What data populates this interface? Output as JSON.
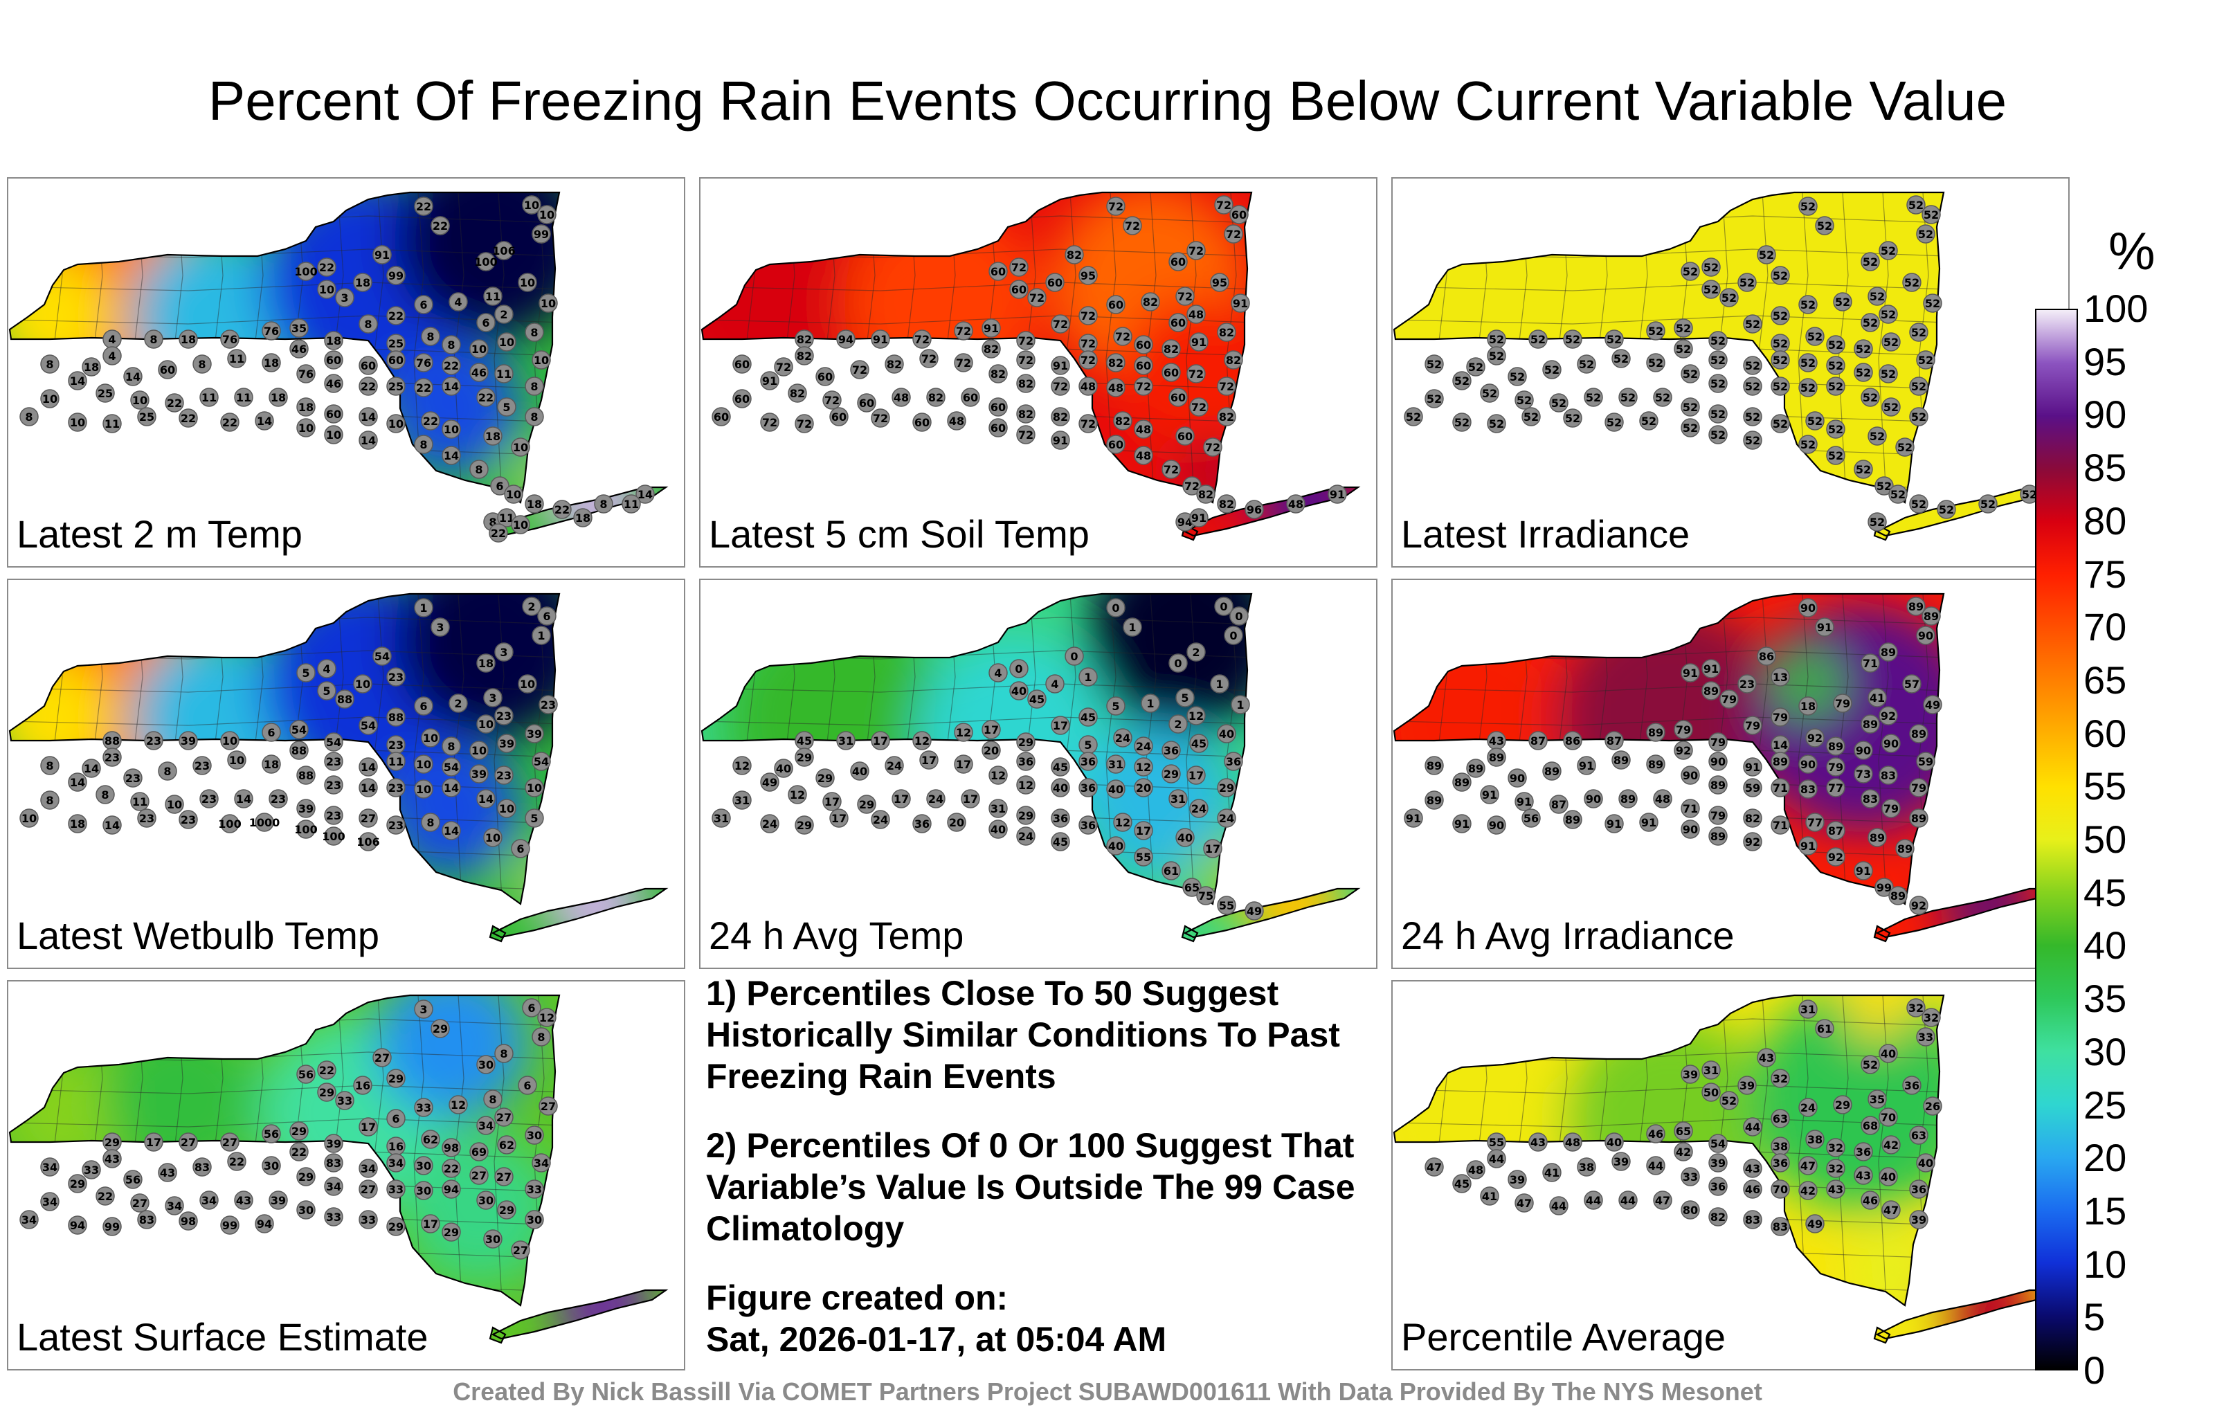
{
  "title": "Percent Of Freezing Rain Events Occurring Below Current Variable Value",
  "colorbar": {
    "unit": "%",
    "ticks": [
      "100",
      "95",
      "90",
      "85",
      "80",
      "75",
      "70",
      "65",
      "60",
      "55",
      "50",
      "45",
      "40",
      "35",
      "30",
      "25",
      "20",
      "15",
      "10",
      "5",
      "0"
    ]
  },
  "panels": [
    {
      "label": "Latest 2 m Temp",
      "field": "cold-east",
      "stations": [
        "1",
        "4",
        "2",
        "6",
        "1",
        "14",
        "18",
        "3",
        "2",
        "46",
        "22",
        "18",
        "6",
        "4",
        "11",
        "10",
        "10",
        "6",
        "2",
        "8",
        "10",
        "3",
        "22",
        "35",
        "18",
        "8",
        "25",
        "8",
        "8",
        "10",
        "10",
        "10",
        "4",
        "8",
        "18",
        "76",
        "76",
        "46",
        "60",
        "60",
        "60",
        "76",
        "22",
        "46",
        "11",
        "8",
        "4",
        "18",
        "14",
        "60",
        "8",
        "11",
        "18",
        "76",
        "46",
        "22",
        "25",
        "22",
        "14",
        "22",
        "5",
        "8",
        "8",
        "14",
        "25",
        "10",
        "22",
        "11",
        "11",
        "18",
        "18",
        "60",
        "14",
        "10",
        "22",
        "10",
        "18",
        "10",
        "10",
        "8",
        "10",
        "11",
        "25",
        "22",
        "22",
        "14",
        "10",
        "10",
        "14",
        "8",
        "14",
        "8",
        "6",
        "10",
        "18",
        "22",
        "8",
        "14",
        "8",
        "11",
        "10",
        "22",
        "18",
        "11",
        "22",
        "22",
        "10",
        "10",
        "99",
        "91",
        "99",
        "100",
        "106",
        "100"
      ]
    },
    {
      "label": "Latest 5 cm Soil Temp",
      "field": "soil",
      "stations": [
        "72",
        "72",
        "72",
        "60",
        "72",
        "82",
        "95",
        "60",
        "72",
        "60",
        "72",
        "60",
        "60",
        "82",
        "72",
        "95",
        "91",
        "60",
        "48",
        "82",
        "60",
        "72",
        "72",
        "91",
        "72",
        "72",
        "72",
        "72",
        "60",
        "82",
        "91",
        "82",
        "82",
        "94",
        "91",
        "72",
        "72",
        "82",
        "72",
        "91",
        "72",
        "82",
        "60",
        "60",
        "72",
        "72",
        "82",
        "72",
        "60",
        "72",
        "82",
        "72",
        "72",
        "82",
        "82",
        "72",
        "48",
        "48",
        "72",
        "60",
        "72",
        "82",
        "60",
        "91",
        "82",
        "72",
        "60",
        "48",
        "82",
        "60",
        "60",
        "82",
        "82",
        "72",
        "82",
        "48",
        "60",
        "72",
        "60",
        "60",
        "72",
        "72",
        "60",
        "72",
        "60",
        "48",
        "60",
        "72",
        "91",
        "60",
        "48",
        "72",
        "72",
        "82",
        "82",
        "96",
        "48",
        "91",
        "94",
        "91"
      ]
    },
    {
      "label": "Latest Irradiance",
      "field": "flat",
      "stations": [
        "52",
        "52",
        "52",
        "52",
        "52",
        "52",
        "52",
        "52",
        "52",
        "52",
        "52",
        "52",
        "52",
        "52",
        "52",
        "52",
        "52",
        "52",
        "52",
        "52",
        "52",
        "52",
        "52",
        "52",
        "52",
        "52",
        "52",
        "52",
        "52",
        "52",
        "52",
        "52",
        "52",
        "52",
        "52",
        "52",
        "52",
        "52",
        "52",
        "52",
        "52",
        "52",
        "52",
        "52",
        "52",
        "52",
        "52",
        "52",
        "52",
        "52",
        "52",
        "52",
        "52",
        "52",
        "52",
        "52",
        "52",
        "52",
        "52",
        "52",
        "52",
        "52",
        "52",
        "52",
        "52",
        "52",
        "52",
        "52",
        "52",
        "52",
        "52",
        "52",
        "52",
        "52",
        "52",
        "52",
        "52",
        "52",
        "52",
        "52",
        "52",
        "52",
        "52",
        "52",
        "52",
        "52",
        "52",
        "52",
        "52",
        "52",
        "52",
        "52",
        "52",
        "52",
        "52",
        "52",
        "52",
        "52",
        "52"
      ]
    },
    {
      "label": "Latest Wetbulb Temp",
      "field": "cold-east",
      "stations": [
        "1",
        "3",
        "2",
        "6",
        "1",
        "54",
        "23",
        "18",
        "3",
        "5",
        "4",
        "10",
        "6",
        "2",
        "3",
        "10",
        "23",
        "10",
        "23",
        "39",
        "5",
        "88",
        "88",
        "54",
        "54",
        "54",
        "23",
        "10",
        "8",
        "10",
        "39",
        "54",
        "88",
        "23",
        "39",
        "10",
        "6",
        "88",
        "23",
        "14",
        "11",
        "10",
        "54",
        "39",
        "23",
        "10",
        "23",
        "14",
        "23",
        "8",
        "23",
        "10",
        "18",
        "88",
        "23",
        "14",
        "23",
        "10",
        "14",
        "14",
        "10",
        "5",
        "8",
        "14",
        "8",
        "11",
        "10",
        "23",
        "14",
        "23",
        "39",
        "23",
        "27",
        "23",
        "8",
        "14",
        "10",
        "6",
        "8",
        "10",
        "18",
        "14",
        "23",
        "23",
        "100",
        "1000",
        "100",
        "100",
        "106"
      ]
    },
    {
      "label": "24 h Avg Temp",
      "field": "mid-temp",
      "stations": [
        "0",
        "1",
        "0",
        "0",
        "0",
        "0",
        "1",
        "0",
        "2",
        "4",
        "0",
        "4",
        "5",
        "1",
        "5",
        "1",
        "1",
        "2",
        "12",
        "40",
        "40",
        "45",
        "45",
        "17",
        "29",
        "17",
        "5",
        "24",
        "24",
        "36",
        "45",
        "36",
        "45",
        "31",
        "17",
        "12",
        "12",
        "20",
        "36",
        "45",
        "36",
        "31",
        "12",
        "29",
        "17",
        "29",
        "29",
        "40",
        "29",
        "40",
        "24",
        "17",
        "17",
        "12",
        "12",
        "40",
        "36",
        "40",
        "20",
        "31",
        "24",
        "24",
        "12",
        "49",
        "12",
        "17",
        "29",
        "17",
        "24",
        "17",
        "31",
        "29",
        "36",
        "36",
        "12",
        "17",
        "40",
        "17",
        "31",
        "31",
        "24",
        "29",
        "17",
        "24",
        "36",
        "20",
        "40",
        "24",
        "45",
        "40",
        "55",
        "61",
        "65",
        "75",
        "55",
        "49"
      ]
    },
    {
      "label": "24 h Avg Irradiance",
      "field": "irr",
      "stations": [
        "90",
        "91",
        "89",
        "89",
        "90",
        "86",
        "13",
        "71",
        "89",
        "91",
        "91",
        "23",
        "18",
        "79",
        "41",
        "57",
        "49",
        "89",
        "92",
        "89",
        "89",
        "79",
        "79",
        "79",
        "79",
        "79",
        "14",
        "92",
        "89",
        "90",
        "90",
        "59",
        "43",
        "87",
        "86",
        "87",
        "89",
        "92",
        "90",
        "91",
        "89",
        "90",
        "79",
        "73",
        "83",
        "79",
        "89",
        "89",
        "90",
        "89",
        "91",
        "89",
        "89",
        "90",
        "89",
        "59",
        "71",
        "83",
        "77",
        "83",
        "79",
        "89",
        "89",
        "89",
        "91",
        "91",
        "87",
        "90",
        "89",
        "48",
        "71",
        "79",
        "82",
        "71",
        "77",
        "87",
        "89",
        "89",
        "89",
        "91",
        "91",
        "90",
        "56",
        "89",
        "91",
        "91",
        "90",
        "89",
        "92",
        "91",
        "92",
        "91",
        "99",
        "89",
        "92"
      ]
    },
    {
      "label": "Latest Surface Estimate",
      "field": "surface",
      "stations": [
        "3",
        "29",
        "6",
        "12",
        "8",
        "27",
        "29",
        "30",
        "8",
        "56",
        "22",
        "16",
        "33",
        "12",
        "8",
        "6",
        "27",
        "34",
        "27",
        "30",
        "29",
        "33",
        "6",
        "29",
        "39",
        "17",
        "16",
        "62",
        "98",
        "69",
        "62",
        "34",
        "29",
        "17",
        "27",
        "27",
        "56",
        "22",
        "83",
        "34",
        "34",
        "30",
        "22",
        "27",
        "27",
        "33",
        "43",
        "33",
        "56",
        "43",
        "83",
        "22",
        "30",
        "29",
        "34",
        "27",
        "33",
        "30",
        "94",
        "30",
        "29",
        "30",
        "34",
        "29",
        "22",
        "27",
        "34",
        "34",
        "43",
        "39",
        "30",
        "33",
        "33",
        "29",
        "17",
        "29",
        "30",
        "27",
        "34",
        "34",
        "94",
        "99",
        "83",
        "98",
        "99",
        "94"
      ]
    },
    {
      "label": "Percentile Average",
      "field": "avg",
      "stations": [
        "31",
        "61",
        "32",
        "32",
        "33",
        "43",
        "32",
        "52",
        "40",
        "39",
        "31",
        "39",
        "24",
        "29",
        "35",
        "36",
        "26",
        "68",
        "70",
        "63",
        "50",
        "52",
        "63",
        "65",
        "54",
        "44",
        "38",
        "38",
        "32",
        "36",
        "42",
        "40",
        "55",
        "43",
        "48",
        "40",
        "46",
        "42",
        "39",
        "43",
        "36",
        "47",
        "32",
        "43",
        "40",
        "36",
        "44",
        "48",
        "39",
        "41",
        "38",
        "39",
        "44",
        "33",
        "36",
        "46",
        "70",
        "42",
        "43",
        "46",
        "47",
        "39",
        "47",
        "45",
        "41",
        "47",
        "44",
        "44",
        "44",
        "47",
        "80",
        "82",
        "83",
        "83",
        "49"
      ]
    }
  ],
  "notes": {
    "note1": "1) Percentiles Close To 50 Suggest Historically Similar Conditions To Past Freezing Rain Events",
    "note2": "2) Percentiles Of 0 Or 100 Suggest That Variable’s Value Is Outside The 99 Case Climatology",
    "created_label": "Figure created on:",
    "created_value": "Sat, 2026-01-17, at 05:04 AM"
  },
  "footer": "Created By Nick Bassill Via COMET Partners Project SUBAWD001611 With Data Provided By The NYS Mesonet"
}
